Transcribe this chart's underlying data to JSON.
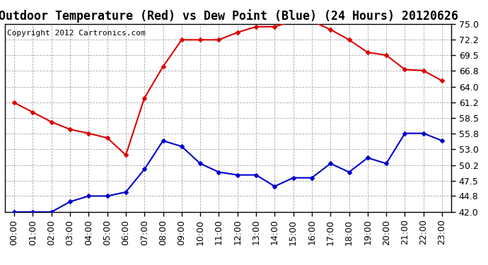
{
  "title": "Outdoor Temperature (Red) vs Dew Point (Blue) (24 Hours) 20120626",
  "copyright_text": "Copyright 2012 Cartronics.com",
  "hours": [
    0,
    1,
    2,
    3,
    4,
    5,
    6,
    7,
    8,
    9,
    10,
    11,
    12,
    13,
    14,
    15,
    16,
    17,
    18,
    19,
    20,
    21,
    22,
    23
  ],
  "temp_red": [
    61.2,
    59.5,
    57.8,
    56.5,
    55.8,
    55.0,
    52.0,
    62.0,
    67.5,
    72.2,
    72.2,
    72.2,
    73.5,
    74.5,
    74.5,
    75.5,
    75.5,
    74.0,
    72.2,
    70.0,
    69.5,
    67.0,
    66.8,
    65.0
  ],
  "dew_blue": [
    42.0,
    42.0,
    42.0,
    43.8,
    44.8,
    44.8,
    45.5,
    49.5,
    54.5,
    53.5,
    50.5,
    49.0,
    48.5,
    48.5,
    46.5,
    48.0,
    48.0,
    50.5,
    49.0,
    51.5,
    50.5,
    55.8,
    55.8,
    54.5
  ],
  "ylim": [
    42.0,
    75.0
  ],
  "yticks": [
    42.0,
    44.8,
    47.5,
    50.2,
    53.0,
    55.8,
    58.5,
    61.2,
    64.0,
    66.8,
    69.5,
    72.2,
    75.0
  ],
  "bg_color": "#ffffff",
  "grid_color": "#aaaaaa",
  "red_color": "#dd0000",
  "blue_color": "#0000cc",
  "marker": "D",
  "marker_size": 3,
  "line_width": 1.5,
  "title_fontsize": 12,
  "tick_fontsize": 9,
  "copyright_fontsize": 8
}
